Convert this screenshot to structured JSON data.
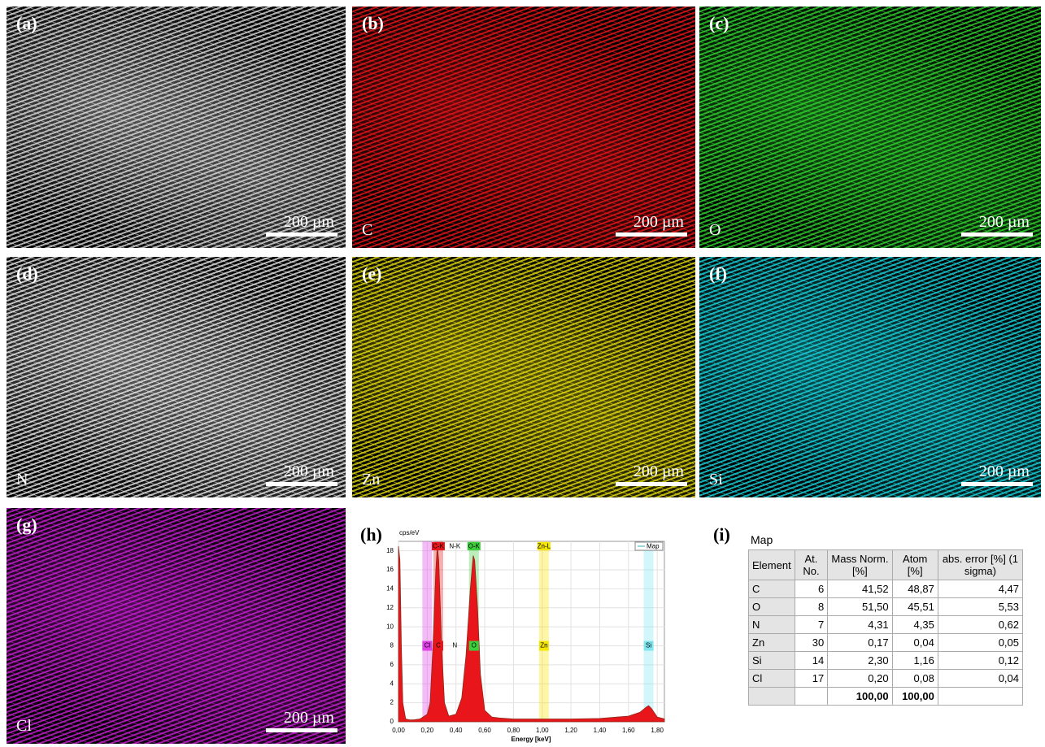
{
  "panels": [
    {
      "label": "(a)",
      "scale_bar": "200 µm",
      "color": "#d9d9d9"
    },
    {
      "label": "(b)",
      "element": "C",
      "scale_bar": "200 µm",
      "color": "#e8161b"
    },
    {
      "label": "(c)",
      "element": "O",
      "scale_bar": "200 µm",
      "color": "#2fd42f"
    },
    {
      "label": "(d)",
      "element": "N",
      "scale_bar": "200 µm",
      "color": "#e6e6e6"
    },
    {
      "label": "(e)",
      "element": "Zn",
      "scale_bar": "200 µm",
      "color": "#e3dc10"
    },
    {
      "label": "(f)",
      "element": "Si",
      "scale_bar": "200 µm",
      "color": "#18d4dc"
    },
    {
      "label": "(g)",
      "element": "Cl",
      "scale_bar": "200 µm",
      "color": "#c81ed2"
    }
  ],
  "chart_data": {
    "type": "area",
    "panel_label": "(h)",
    "ylabel": "cps/eV",
    "xlabel": "Energy [keV]",
    "x": [
      0.0,
      0.01,
      0.02,
      0.03,
      0.05,
      0.08,
      0.1,
      0.15,
      0.2,
      0.22,
      0.24,
      0.26,
      0.27,
      0.28,
      0.3,
      0.32,
      0.35,
      0.4,
      0.44,
      0.47,
      0.5,
      0.52,
      0.53,
      0.55,
      0.57,
      0.6,
      0.65,
      0.7,
      0.8,
      1.0,
      1.2,
      1.4,
      1.6,
      1.68,
      1.72,
      1.74,
      1.76,
      1.8,
      1.85
    ],
    "series": [
      {
        "name": "Map",
        "color": "#e8161b",
        "values": [
          18.5,
          17,
          8,
          2,
          0.3,
          0.2,
          0.2,
          0.3,
          0.8,
          2,
          8,
          16,
          18.5,
          17,
          8,
          2,
          0.6,
          0.8,
          2.5,
          7,
          14,
          17.5,
          17,
          12,
          5,
          1.2,
          0.5,
          0.4,
          0.3,
          0.3,
          0.3,
          0.35,
          0.6,
          1.0,
          1.5,
          1.7,
          1.4,
          0.5,
          0.3
        ]
      }
    ],
    "xlim": [
      0,
      1.85
    ],
    "ylim": [
      0,
      19
    ],
    "xticks": [
      {
        "value": 0,
        "label": "0,00"
      },
      {
        "value": 0.2,
        "label": "0,20"
      },
      {
        "value": 0.4,
        "label": "0,40"
      },
      {
        "value": 0.6,
        "label": "0,60"
      },
      {
        "value": 0.8,
        "label": "0,80"
      },
      {
        "value": 1.0,
        "label": "1,00"
      },
      {
        "value": 1.2,
        "label": "1,20"
      },
      {
        "value": 1.4,
        "label": "1,40"
      },
      {
        "value": 1.6,
        "label": "1,60"
      },
      {
        "value": 1.8,
        "label": "1,80"
      }
    ],
    "yticks": [
      0,
      2,
      4,
      6,
      8,
      10,
      12,
      14,
      16,
      18
    ],
    "grid": true,
    "line_labels": [
      {
        "label": "C-K",
        "x": 0.277,
        "color": "#e8161b"
      },
      {
        "label": "N-K",
        "x": 0.392
      },
      {
        "label": "O-K",
        "x": 0.525,
        "color": "#3ccf3c"
      },
      {
        "label": "Zn-L",
        "x": 1.012,
        "color": "#f5e600"
      }
    ],
    "element_labels": [
      {
        "label": "Cl",
        "x": 0.2,
        "color": "#e040e8"
      },
      {
        "label": "C",
        "x": 0.277,
        "color": "#e8161b"
      },
      {
        "label": "N",
        "x": 0.392
      },
      {
        "label": "O",
        "x": 0.525,
        "color": "#3ccf3c"
      },
      {
        "label": "Zn",
        "x": 1.012,
        "color": "#f5e600"
      },
      {
        "label": "Si",
        "x": 1.74,
        "color": "#7fe6f0"
      }
    ]
  },
  "table": {
    "panel_label": "(i)",
    "title": "Map",
    "header": [
      "Element",
      "At. No.",
      "Mass Norm. [%]",
      "Atom [%]",
      "abs. error [%] (1 sigma)"
    ],
    "rows": [
      [
        "C",
        "6",
        "41,52",
        "48,87",
        "4,47"
      ],
      [
        "O",
        "8",
        "51,50",
        "45,51",
        "5,53"
      ],
      [
        "N",
        "7",
        "4,31",
        "4,35",
        "0,62"
      ],
      [
        "Zn",
        "30",
        "0,17",
        "0,04",
        "0,05"
      ],
      [
        "Si",
        "14",
        "2,30",
        "1,16",
        "0,12"
      ],
      [
        "Cl",
        "17",
        "0,20",
        "0,08",
        "0,04"
      ]
    ],
    "totals": [
      "100,00",
      "100,00"
    ]
  }
}
